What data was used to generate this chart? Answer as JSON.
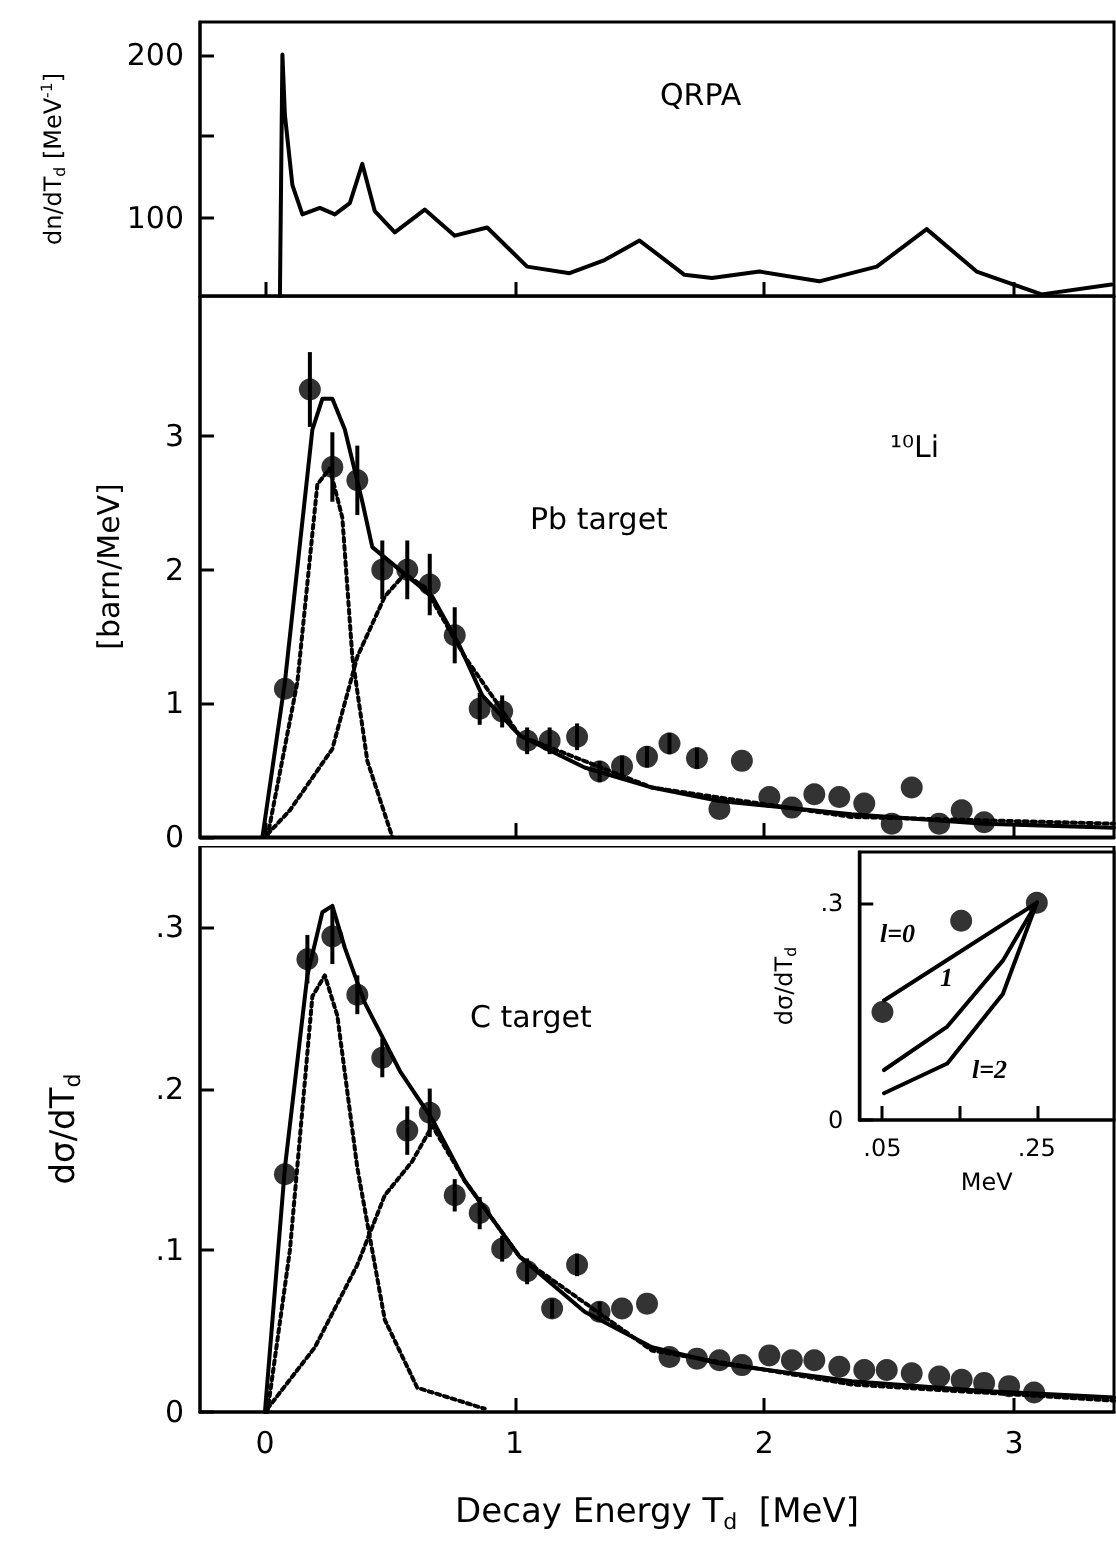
{
  "chart_data": [
    {
      "type": "line",
      "marker": "none",
      "ylabel": "dn/dT$_{d}$ [MeV$^{-1}$]",
      "annotations": [
        "QRPA"
      ],
      "tick_labels": "y",
      "xlim": [
        -0.26,
        3.4
      ],
      "xticks": [
        0,
        1,
        2,
        3
      ],
      "ylim": [
        52,
        220
      ],
      "yticks": [
        100,
        {
          "value": 150,
          "label": null
        },
        200
      ],
      "series": [
        {
          "color": "#000000",
          "x": [
            0.06,
            0.07,
            0.08,
            0.11,
            0.15,
            0.22,
            0.28,
            0.34,
            0.39,
            0.44,
            0.52,
            0.64,
            0.76,
            0.89,
            1.05,
            1.22,
            1.36,
            1.5,
            1.68,
            1.79,
            1.98,
            2.22,
            2.45,
            2.65,
            2.85,
            3.11,
            3.39
          ],
          "values": [
            52,
            200,
            163,
            120,
            102,
            106,
            102,
            109,
            133,
            104,
            91,
            105,
            89,
            94,
            70,
            66,
            74,
            86,
            65,
            63,
            67,
            61,
            70,
            93,
            67,
            53,
            59
          ]
        }
      ]
    },
    {
      "type": "scatter",
      "marker": "circle",
      "ylabel": "[barn/MeV]",
      "annotations": [
        "¹⁰Li",
        "Pb target"
      ],
      "tick_labels": "y",
      "xlim": [
        -0.26,
        3.4
      ],
      "xticks": [
        0,
        1,
        2,
        3
      ],
      "ylim": [
        0,
        4.05
      ],
      "yticks": [
        0,
        1,
        2,
        3
      ],
      "series": [
        {
          "color": "#000000",
          "x": [
            0.08,
            0.18,
            0.27,
            0.37,
            0.47,
            0.57,
            0.66,
            0.76,
            0.86,
            0.95,
            1.05,
            1.14,
            1.25,
            1.34,
            1.43,
            1.53,
            1.62,
            1.73,
            1.82,
            1.91,
            2.02,
            2.11,
            2.2,
            2.3,
            2.4,
            2.51,
            2.59,
            2.7,
            2.79,
            2.88
          ],
          "values": [
            1.11,
            3.35,
            2.77,
            2.67,
            2.0,
            2.0,
            1.89,
            1.51,
            0.96,
            0.94,
            0.72,
            0.72,
            0.75,
            0.49,
            0.53,
            0.6,
            0.7,
            0.59,
            0.21,
            0.57,
            0.3,
            0.22,
            0.32,
            0.3,
            0.25,
            0.1,
            0.37,
            0.1,
            0.2,
            0.11
          ],
          "errors": [
            null,
            0.28,
            0.26,
            0.26,
            0.22,
            0.22,
            0.23,
            0.21,
            0.12,
            0.12,
            0.1,
            0.1,
            0.1,
            0.08,
            0.08,
            0.08,
            0.08,
            0.08,
            null,
            null,
            null,
            null,
            null,
            null,
            null,
            null,
            null,
            null,
            null,
            null
          ]
        },
        {
          "type": "line",
          "marker": "none",
          "color": "#000000",
          "x": [
            -0.01,
            0.08,
            0.19,
            0.23,
            0.27,
            0.32,
            0.39,
            0.43,
            0.54,
            0.67,
            0.78,
            0.87,
            1.02,
            1.28,
            1.55,
            1.82,
            2.35,
            2.88,
            3.4
          ],
          "values": [
            0,
            1.16,
            3.05,
            3.28,
            3.28,
            3.05,
            2.51,
            2.17,
            2.0,
            1.8,
            1.43,
            1.06,
            0.76,
            0.52,
            0.37,
            0.27,
            0.17,
            0.1,
            0.07
          ]
        },
        {
          "type": "line",
          "marker": "none",
          "line_style": "dotted",
          "color": "#000000",
          "x": [
            0.01,
            0.13,
            0.21,
            0.26,
            0.31,
            0.35,
            0.41,
            0.51
          ],
          "values": [
            0,
            1.16,
            2.64,
            2.76,
            2.39,
            1.35,
            0.57,
            0
          ]
        },
        {
          "type": "line",
          "marker": "none",
          "line_style": "dotted",
          "color": "#000000",
          "x": [
            0.01,
            0.1,
            0.27,
            0.37,
            0.48,
            0.56,
            0.64,
            0.8,
            1.02,
            1.55,
            2.35,
            3.4
          ],
          "values": [
            0.02,
            0.2,
            0.66,
            1.35,
            1.8,
            1.97,
            1.87,
            1.35,
            0.76,
            0.37,
            0.15,
            0.1
          ]
        }
      ]
    },
    {
      "type": "scatter",
      "marker": "circle",
      "ylabel": "dσ/dT$_{d}$",
      "xlabel": "Decay Energy T$_{d}$  [MeV]",
      "annotations": [
        "C target"
      ],
      "xlim": [
        -0.26,
        3.4
      ],
      "xticks": [
        0,
        1,
        2,
        3
      ],
      "ylim": [
        0,
        0.35
      ],
      "yticks": [
        0,
        {
          "value": 0.1,
          "label": ".1"
        },
        {
          "value": 0.2,
          "label": ".2"
        },
        {
          "value": 0.3,
          "label": ".3"
        }
      ],
      "series": [
        {
          "color": "#000000",
          "x": [
            0.08,
            0.17,
            0.27,
            0.37,
            0.47,
            0.57,
            0.66,
            0.76,
            0.86,
            0.95,
            1.05,
            1.15,
            1.25,
            1.34,
            1.43,
            1.53,
            1.62,
            1.73,
            1.82,
            1.91,
            2.02,
            2.11,
            2.2,
            2.3,
            2.4,
            2.49,
            2.59,
            2.7,
            2.79,
            2.88,
            2.98,
            3.08
          ],
          "values": [
            0.147,
            0.28,
            0.294,
            0.258,
            0.219,
            0.174,
            0.185,
            0.134,
            0.123,
            0.101,
            0.087,
            0.064,
            0.091,
            0.062,
            0.064,
            0.067,
            0.034,
            0.033,
            0.032,
            0.029,
            0.035,
            0.032,
            0.032,
            0.028,
            0.026,
            0.026,
            0.024,
            0.022,
            0.02,
            0.018,
            0.016,
            0.012
          ],
          "errors": [
            null,
            0.015,
            0.017,
            0.012,
            0.012,
            0.015,
            0.015,
            0.01,
            0.01,
            0.008,
            0.008,
            0.006,
            0.007,
            0.006,
            null,
            null,
            null,
            null,
            null,
            null,
            null,
            null,
            null,
            null,
            null,
            null,
            null,
            null,
            null,
            null,
            null,
            null
          ]
        },
        {
          "type": "line",
          "marker": "none",
          "color": "#000000",
          "x": [
            0,
            0.08,
            0.17,
            0.23,
            0.27,
            0.32,
            0.4,
            0.54,
            0.67,
            0.8,
            1.02,
            1.28,
            1.55,
            1.82,
            2.35,
            2.88,
            3.4
          ],
          "values": [
            0,
            0.151,
            0.27,
            0.309,
            0.313,
            0.287,
            0.253,
            0.211,
            0.181,
            0.143,
            0.096,
            0.062,
            0.04,
            0.03,
            0.019,
            0.013,
            0.009
          ]
        },
        {
          "type": "line",
          "marker": "none",
          "line_style": "dotted",
          "color": "#000000",
          "x": [
            0.01,
            0.1,
            0.19,
            0.24,
            0.29,
            0.37,
            0.48,
            0.61,
            0.88
          ],
          "values": [
            0,
            0.1,
            0.257,
            0.27,
            0.245,
            0.151,
            0.057,
            0.015,
            0.002
          ]
        },
        {
          "type": "line",
          "marker": "none",
          "line_style": "dotted",
          "color": "#000000",
          "x": [
            0.01,
            0.2,
            0.37,
            0.48,
            0.59,
            0.67,
            0.8,
            1.02,
            1.55,
            2.35,
            3.4
          ],
          "values": [
            0.002,
            0.04,
            0.091,
            0.134,
            0.155,
            0.177,
            0.143,
            0.096,
            0.038,
            0.017,
            0.007
          ]
        }
      ]
    },
    {
      "type": "line",
      "marker": "none",
      "ylabel": "dσ/dT$_{d}$",
      "xlabel": "MeV",
      "xlim": [
        0.02,
        0.35
      ],
      "xticks": [
        {
          "value": 0.05,
          "label": ".05"
        },
        {
          "value": 0.15,
          "label": null
        },
        {
          "value": 0.25,
          "label": ".25"
        }
      ],
      "ylim": [
        0,
        0.37
      ],
      "yticks": [
        0,
        {
          "value": 0.3,
          "label": ".3"
        }
      ],
      "annotations": [
        "l=0",
        "1",
        "l=2"
      ],
      "series": [
        {
          "type": "scatter",
          "marker": "circle",
          "color": "#000000",
          "x": [
            0.05,
            0.152,
            0.25
          ],
          "values": [
            0.149,
            0.275,
            0.3
          ]
        },
        {
          "color": "#000000",
          "x": [
            0.052,
            0.25
          ],
          "values": [
            0.165,
            0.3
          ]
        },
        {
          "color": "#000000",
          "x": [
            0.052,
            0.134,
            0.206,
            0.25
          ],
          "values": [
            0.069,
            0.129,
            0.22,
            0.3
          ]
        },
        {
          "color": "#000000",
          "x": [
            0.052,
            0.134,
            0.206,
            0.25
          ],
          "values": [
            0.037,
            0.078,
            0.174,
            0.3
          ]
        }
      ]
    }
  ]
}
